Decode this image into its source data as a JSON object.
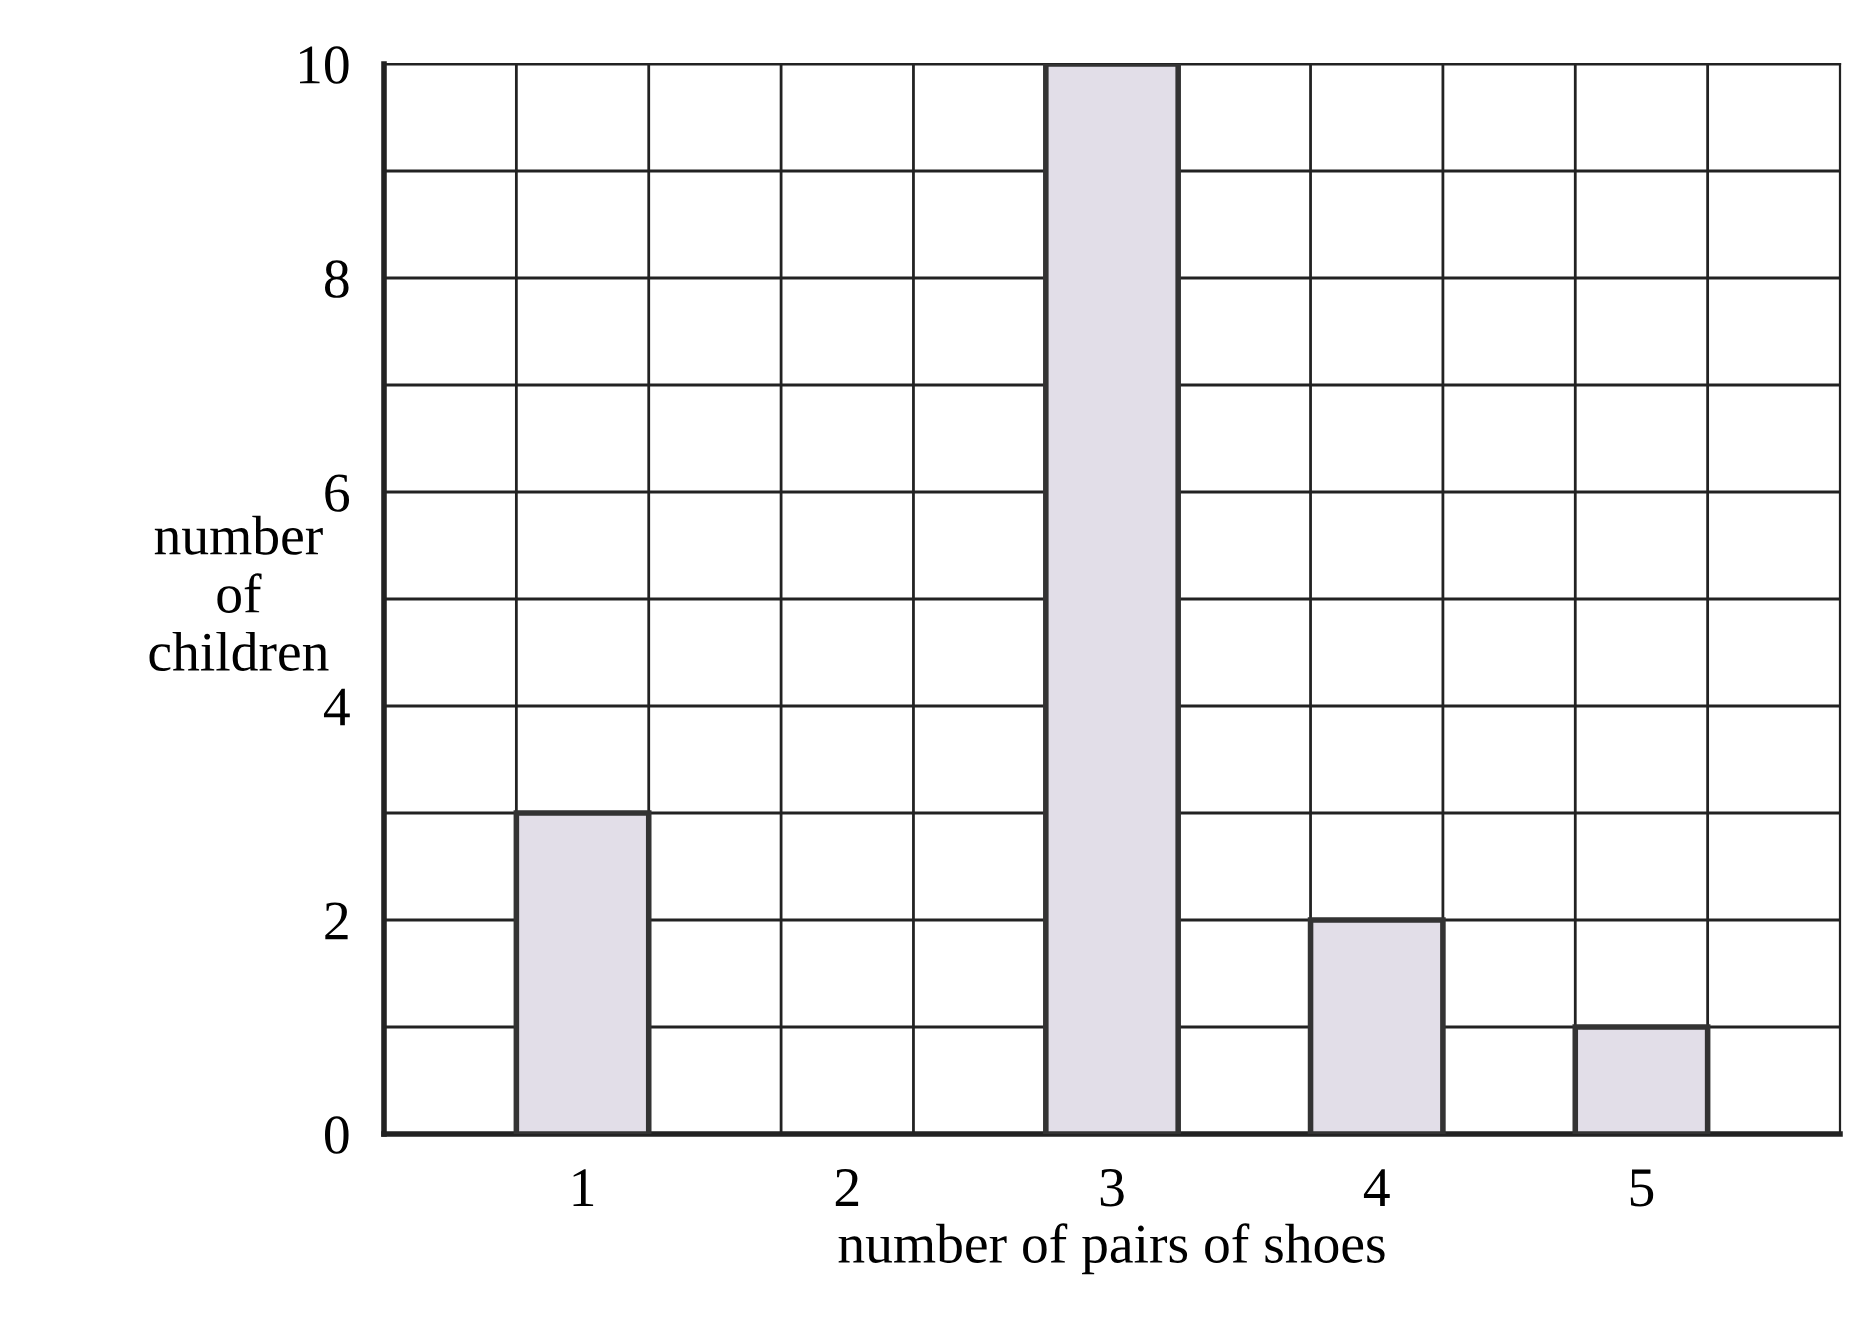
{
  "chart_data": {
    "type": "bar",
    "xlabel": "number of pairs of shoes",
    "ylabel": "number\nof\nchildren",
    "categories": [
      "1",
      "2",
      "3",
      "4",
      "5"
    ],
    "values": [
      3,
      0,
      10,
      2,
      1
    ],
    "color": "#e2dee8",
    "ylim": [
      0,
      10
    ],
    "yticks": [
      0,
      {
        "value": 1,
        "label": null
      },
      2,
      {
        "value": 3,
        "label": null
      },
      4,
      {
        "value": 5,
        "label": null
      },
      6,
      {
        "value": 7,
        "label": null
      },
      8,
      {
        "value": 9,
        "label": null
      },
      10
    ],
    "grid": true
  }
}
